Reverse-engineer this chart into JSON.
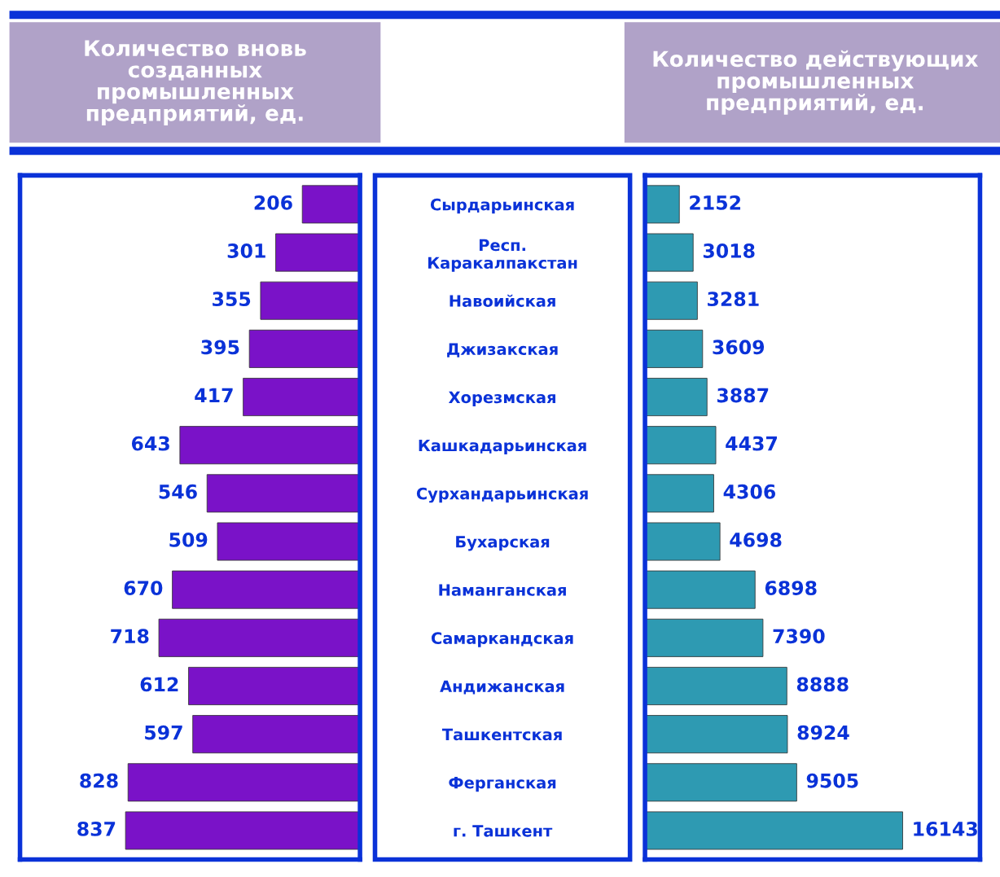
{
  "chart_data": [
    {
      "type": "bar",
      "orientation": "horizontal",
      "title": "Количество вновь\nсозданных\nпромышленных\nпредприятий, ед.",
      "categories": [
        "Сырдарьинская",
        "Респ.\nКаракалпакстан",
        "Навоийская",
        "Джизакская",
        "Хорезмская",
        "Кашкадарьинская",
        "Сурхандарьинская",
        "Бухарская",
        "Наманганская",
        "Самаркандская",
        "Андижанская",
        "Ташкентская",
        "Ферганская",
        "г. Ташкент"
      ],
      "series": [
        {
          "color": "#7a12c8",
          "values": [
            206,
            301,
            355,
            395,
            417,
            643,
            546,
            509,
            670,
            718,
            612,
            597,
            828,
            837
          ]
        }
      ],
      "data_labels": true,
      "tick_labels": "y",
      "grid": false
    },
    {
      "type": "bar",
      "orientation": "horizontal",
      "title": "Количество действующих\nпромышленных\nпредприятий, ед.",
      "categories": [
        null,
        null,
        null,
        null,
        null,
        null,
        null,
        null,
        null,
        null,
        null,
        null,
        null,
        null
      ],
      "series": [
        {
          "color": "#2e9ab2",
          "values": [
            2152,
            3018,
            3281,
            3609,
            3887,
            4437,
            4306,
            4698,
            6898,
            7390,
            8888,
            8924,
            9505,
            16143
          ]
        }
      ],
      "data_labels": true,
      "grid": false
    }
  ]
}
